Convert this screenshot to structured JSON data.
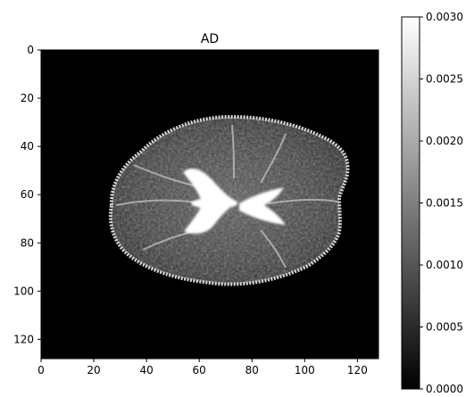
{
  "chart_data": [
    {
      "type": "heatmap",
      "title": "AD",
      "xlabel": "",
      "ylabel": "",
      "xlim": [
        0,
        128
      ],
      "ylim": [
        128,
        0
      ],
      "xticks": [
        0,
        20,
        40,
        60,
        80,
        100,
        120
      ],
      "yticks": [
        0,
        20,
        40,
        60,
        80,
        100,
        120
      ],
      "grid": false,
      "colormap": "gray",
      "background_value": 0.0,
      "content": "axial brain diffusion map, intensity image",
      "regions": [
        {
          "label": "brain extent",
          "x_range": [
            25,
            117
          ],
          "y_range": [
            27,
            100
          ],
          "value": 0.0012
        },
        {
          "label": "ventricles (bright)",
          "center": [
            66,
            63
          ],
          "value": 0.003
        },
        {
          "label": "cortical rim (bright)",
          "value": 0.0026
        }
      ]
    },
    {
      "type": "colorbar",
      "vmin": 0.0,
      "vmax": 0.003,
      "ticks": [
        "0.0000",
        "0.0005",
        "0.0010",
        "0.0015",
        "0.0020",
        "0.0025",
        "0.0030"
      ],
      "colors": {
        "low": "#000000",
        "high": "#ffffff"
      }
    }
  ]
}
